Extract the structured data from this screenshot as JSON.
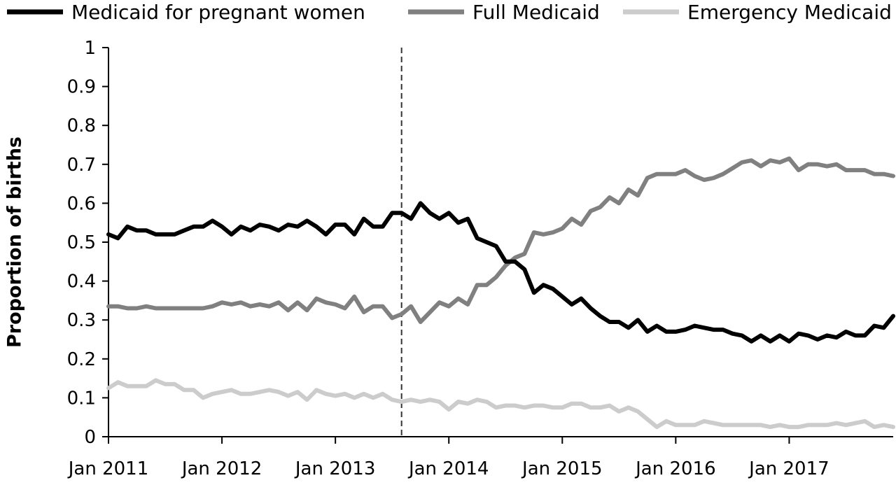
{
  "chart_data": {
    "type": "line",
    "title": "",
    "xlabel": "",
    "ylabel": "Proportion of births",
    "ylim": [
      0,
      1
    ],
    "yticks": [
      "0",
      "0.1",
      "0.2",
      "0.3",
      "0.4",
      "0.5",
      "0.6",
      "0.7",
      "0.8",
      "0.9",
      "1"
    ],
    "x_tick_labels": [
      "Jan 2011",
      "Jan 2012",
      "Jan 2013",
      "Jan 2014",
      "Jan 2015",
      "Jan 2016",
      "Jan 2017"
    ],
    "x_start": "Jan 2011",
    "x_end": "Dec 2017",
    "reference_line_x": "Aug 2013",
    "legend_position": "top",
    "grid": false,
    "series": [
      {
        "name": "Medicaid for pregnant women",
        "color": "#000000",
        "values": [
          0.52,
          0.51,
          0.54,
          0.53,
          0.53,
          0.52,
          0.52,
          0.52,
          0.53,
          0.54,
          0.54,
          0.555,
          0.54,
          0.52,
          0.54,
          0.53,
          0.545,
          0.54,
          0.53,
          0.545,
          0.54,
          0.555,
          0.54,
          0.52,
          0.545,
          0.545,
          0.52,
          0.56,
          0.54,
          0.54,
          0.575,
          0.575,
          0.56,
          0.6,
          0.575,
          0.56,
          0.575,
          0.55,
          0.56,
          0.51,
          0.5,
          0.49,
          0.45,
          0.45,
          0.43,
          0.37,
          0.39,
          0.38,
          0.36,
          0.34,
          0.355,
          0.33,
          0.31,
          0.295,
          0.295,
          0.28,
          0.3,
          0.27,
          0.285,
          0.27,
          0.27,
          0.275,
          0.285,
          0.28,
          0.275,
          0.275,
          0.265,
          0.26,
          0.245,
          0.26,
          0.245,
          0.26,
          0.245,
          0.265,
          0.26,
          0.25,
          0.26,
          0.255,
          0.27,
          0.26,
          0.26,
          0.285,
          0.28,
          0.31
        ]
      },
      {
        "name": "Full Medicaid",
        "color": "#808080",
        "values": [
          0.335,
          0.335,
          0.33,
          0.33,
          0.335,
          0.33,
          0.33,
          0.33,
          0.33,
          0.33,
          0.33,
          0.335,
          0.345,
          0.34,
          0.345,
          0.335,
          0.34,
          0.335,
          0.345,
          0.325,
          0.345,
          0.325,
          0.355,
          0.345,
          0.34,
          0.33,
          0.36,
          0.32,
          0.335,
          0.335,
          0.305,
          0.315,
          0.335,
          0.295,
          0.32,
          0.345,
          0.335,
          0.355,
          0.34,
          0.39,
          0.39,
          0.41,
          0.44,
          0.46,
          0.47,
          0.525,
          0.52,
          0.525,
          0.535,
          0.56,
          0.545,
          0.58,
          0.59,
          0.615,
          0.6,
          0.635,
          0.62,
          0.665,
          0.675,
          0.675,
          0.675,
          0.685,
          0.67,
          0.66,
          0.665,
          0.675,
          0.69,
          0.705,
          0.71,
          0.695,
          0.71,
          0.705,
          0.715,
          0.685,
          0.7,
          0.7,
          0.695,
          0.7,
          0.685,
          0.685,
          0.685,
          0.675,
          0.675,
          0.67
        ]
      },
      {
        "name": "Emergency Medicaid",
        "color": "#cccccc",
        "values": [
          0.125,
          0.14,
          0.13,
          0.13,
          0.13,
          0.145,
          0.135,
          0.135,
          0.12,
          0.12,
          0.1,
          0.11,
          0.115,
          0.12,
          0.11,
          0.11,
          0.115,
          0.12,
          0.115,
          0.105,
          0.115,
          0.095,
          0.12,
          0.11,
          0.105,
          0.11,
          0.1,
          0.11,
          0.1,
          0.11,
          0.095,
          0.09,
          0.095,
          0.09,
          0.095,
          0.09,
          0.07,
          0.09,
          0.085,
          0.095,
          0.09,
          0.075,
          0.08,
          0.08,
          0.075,
          0.08,
          0.08,
          0.075,
          0.075,
          0.085,
          0.085,
          0.075,
          0.075,
          0.08,
          0.065,
          0.075,
          0.065,
          0.045,
          0.025,
          0.04,
          0.03,
          0.03,
          0.03,
          0.04,
          0.035,
          0.03,
          0.03,
          0.03,
          0.03,
          0.03,
          0.025,
          0.03,
          0.025,
          0.025,
          0.03,
          0.03,
          0.03,
          0.035,
          0.03,
          0.035,
          0.04,
          0.025,
          0.03,
          0.025
        ]
      }
    ]
  }
}
